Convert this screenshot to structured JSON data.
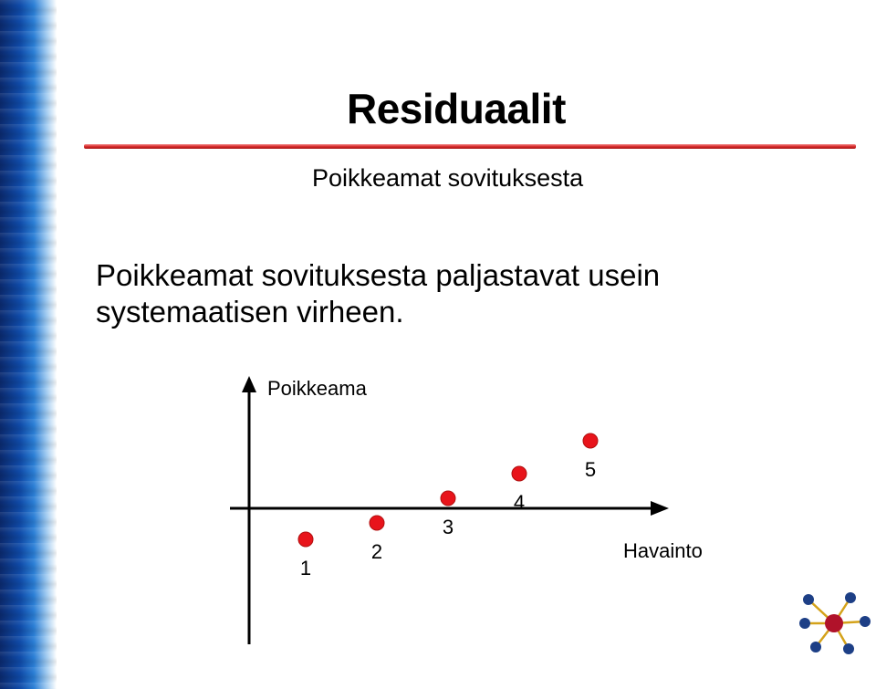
{
  "title": "Residuaalit",
  "subtitle": "Poikkeamat sovituksesta",
  "body_text": "Poikkeamat sovituksesta paljastavat usein systemaatisen virheen.",
  "diagram": {
    "y_axis_label": "Poikkeama",
    "x_axis_label": "Havainto",
    "point_color": "#e8141b",
    "points": [
      {
        "label": "1",
        "residual": -3.0
      },
      {
        "label": "2",
        "residual": -2.0
      },
      {
        "label": "3",
        "residual": -0.5
      },
      {
        "label": "4",
        "residual": 1.0
      },
      {
        "label": "5",
        "residual": 3.0
      }
    ]
  },
  "colors": {
    "accent_rule": "#d92c2c",
    "sidebar": "#0f4aa8"
  }
}
